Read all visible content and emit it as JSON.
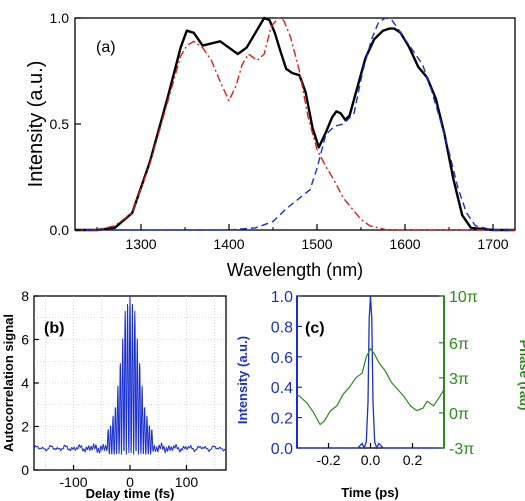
{
  "chart_data": [
    {
      "type": "line",
      "panel_label": "(a)",
      "xlabel": "Wavelength (nm)",
      "ylabel": "Intensity (a.u.)",
      "xlim": [
        1225,
        1725
      ],
      "ylim": [
        0.0,
        1.0
      ],
      "x_ticks": [
        "1300",
        "1400",
        "1500",
        "1600",
        "1700"
      ],
      "y_ticks": [
        "0.0",
        "0.5",
        "1.0"
      ],
      "grid": false,
      "series": [
        {
          "color": "#000000",
          "style": "solid",
          "x": [
            1225,
            1250,
            1270,
            1290,
            1310,
            1330,
            1345,
            1352,
            1360,
            1370,
            1380,
            1390,
            1400,
            1410,
            1420,
            1430,
            1440,
            1446,
            1452,
            1458,
            1465,
            1472,
            1480,
            1487,
            1495,
            1502,
            1510,
            1517,
            1522,
            1527,
            1532,
            1537,
            1545,
            1555,
            1565,
            1575,
            1582,
            1588,
            1595,
            1605,
            1615,
            1625,
            1635,
            1645,
            1655,
            1665,
            1675,
            1700,
            1725
          ],
          "y": [
            0,
            0,
            0.01,
            0.08,
            0.32,
            0.62,
            0.86,
            0.94,
            0.93,
            0.87,
            0.88,
            0.89,
            0.86,
            0.83,
            0.86,
            0.93,
            1.0,
            0.99,
            0.93,
            0.85,
            0.76,
            0.74,
            0.73,
            0.65,
            0.48,
            0.39,
            0.46,
            0.53,
            0.56,
            0.55,
            0.52,
            0.54,
            0.66,
            0.81,
            0.9,
            0.94,
            0.95,
            0.95,
            0.93,
            0.86,
            0.77,
            0.72,
            0.62,
            0.45,
            0.24,
            0.07,
            0.01,
            0,
            0
          ]
        },
        {
          "color": "#d62020",
          "style": "dashdot",
          "x": [
            1225,
            1250,
            1270,
            1290,
            1310,
            1330,
            1345,
            1352,
            1360,
            1370,
            1380,
            1390,
            1400,
            1408,
            1415,
            1422,
            1432,
            1440,
            1448,
            1456,
            1462,
            1470,
            1480,
            1490,
            1500,
            1510,
            1520,
            1530,
            1540,
            1550,
            1560,
            1570,
            1580,
            1600,
            1725
          ],
          "y": [
            0,
            0,
            0.02,
            0.08,
            0.31,
            0.6,
            0.82,
            0.87,
            0.89,
            0.86,
            0.8,
            0.7,
            0.61,
            0.68,
            0.78,
            0.83,
            0.8,
            0.83,
            0.96,
            1.0,
            0.99,
            0.91,
            0.75,
            0.53,
            0.38,
            0.3,
            0.23,
            0.15,
            0.1,
            0.05,
            0.02,
            0.01,
            0,
            0,
            0
          ]
        },
        {
          "color": "#1a2fd0",
          "style": "dashed",
          "x": [
            1225,
            1400,
            1430,
            1450,
            1465,
            1480,
            1492,
            1500,
            1510,
            1520,
            1530,
            1542,
            1552,
            1562,
            1570,
            1578,
            1585,
            1592,
            1600,
            1610,
            1620,
            1630,
            1640,
            1650,
            1660,
            1670,
            1680,
            1700,
            1725
          ],
          "y": [
            0,
            0,
            0.01,
            0.04,
            0.1,
            0.15,
            0.19,
            0.29,
            0.45,
            0.49,
            0.5,
            0.55,
            0.75,
            0.9,
            0.98,
            1.0,
            0.99,
            0.95,
            0.9,
            0.84,
            0.78,
            0.66,
            0.52,
            0.37,
            0.2,
            0.08,
            0.02,
            0,
            0
          ]
        }
      ]
    },
    {
      "type": "line",
      "panel_label": "(b)",
      "xlabel": "Delay time (fs)",
      "ylabel": "Autocorrelation signal",
      "xlim": [
        -170,
        170
      ],
      "ylim": [
        0,
        8
      ],
      "x_ticks": [
        "-100",
        "0",
        "100"
      ],
      "y_ticks": [
        "0",
        "2",
        "4",
        "6",
        "8"
      ],
      "grid": true,
      "series": [
        {
          "color": "#1a2fd0",
          "style": "solid",
          "envelope_x": [
            -170,
            -120,
            -80,
            -50,
            -35,
            -25,
            -15,
            -8,
            -3,
            0,
            3,
            8,
            15,
            25,
            35,
            50,
            80,
            120,
            170
          ],
          "envelope_y": [
            1.0,
            1.05,
            1.2,
            1.5,
            2.0,
            3.0,
            5.5,
            7.5,
            7.9,
            8.0,
            7.9,
            7.5,
            5.5,
            3.0,
            2.0,
            1.5,
            1.2,
            1.05,
            1.0
          ]
        }
      ]
    },
    {
      "type": "line",
      "panel_label": "(c)",
      "xlabel": "Time (ps)",
      "ylabel": "Intensity (a.u.)",
      "y2label": "Phase (rad)",
      "xlim": [
        -0.35,
        0.35
      ],
      "ylim": [
        0.0,
        1.0
      ],
      "y2lim": [
        -3,
        10
      ],
      "x_ticks": [
        "-0.2",
        "0.0",
        "0.2"
      ],
      "y_ticks": [
        "0.0",
        "0.2",
        "0.4",
        "0.6",
        "0.8",
        "1.0"
      ],
      "y2_ticks": [
        "10π",
        "6π",
        "3π",
        "0π",
        "-3π"
      ],
      "grid": false,
      "series": [
        {
          "color": "#1a2fd0",
          "style": "solid",
          "x": [
            -0.35,
            -0.06,
            -0.04,
            -0.03,
            -0.02,
            -0.012,
            -0.006,
            0.0,
            0.006,
            0.012,
            0.02,
            0.03,
            0.04,
            0.06,
            0.35
          ],
          "y": [
            0,
            0,
            0.03,
            0.0,
            0.04,
            0.3,
            0.85,
            1.0,
            0.85,
            0.3,
            0.04,
            0.0,
            0.03,
            0,
            0
          ]
        },
        {
          "color": "#2a8a1a",
          "style": "solid",
          "x": [
            -0.35,
            -0.33,
            -0.3,
            -0.27,
            -0.24,
            -0.22,
            -0.19,
            -0.16,
            -0.13,
            -0.1,
            -0.07,
            -0.04,
            -0.02,
            0.0,
            0.02,
            0.04,
            0.07,
            0.1,
            0.13,
            0.16,
            0.19,
            0.22,
            0.25,
            0.27,
            0.3,
            0.33,
            0.35
          ],
          "y": [
            1.6,
            1.3,
            0.8,
            0.0,
            -1.0,
            -0.7,
            0.2,
            0.6,
            1.6,
            2.2,
            3.0,
            3.4,
            4.8,
            5.5,
            5.0,
            4.3,
            3.6,
            2.6,
            2.0,
            1.4,
            0.6,
            0.2,
            0.4,
            1.0,
            0.6,
            1.4,
            2.0
          ]
        }
      ]
    }
  ],
  "colors": {
    "black": "#000000",
    "red": "#d62020",
    "blue": "#1a2fd0",
    "green": "#2a8a1a"
  }
}
